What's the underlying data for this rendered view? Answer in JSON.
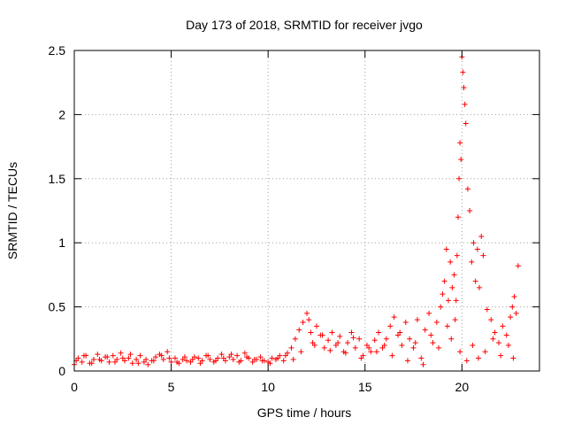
{
  "chart_data": {
    "type": "scatter",
    "title": "Day 173 of 2018, SRMTID for receiver jvgo",
    "xlabel": "GPS time / hours",
    "ylabel": "SRMTID / TECUs",
    "xlim": [
      0,
      24
    ],
    "ylim": [
      0,
      2.5
    ],
    "x_ticks": [
      0,
      5,
      10,
      15,
      20
    ],
    "x_tick_labels": [
      "0",
      "5",
      "10",
      "15",
      "20"
    ],
    "y_ticks": [
      0,
      0.5,
      1,
      1.5,
      2,
      2.5
    ],
    "y_tick_labels": [
      "0",
      "0.5",
      "1",
      "1.5",
      "2",
      "2.5"
    ],
    "grid": true,
    "marker": "plus",
    "color": "#ff0000",
    "series": [
      {
        "name": "SRMTID",
        "x": [
          0.0,
          0.2,
          0.4,
          0.6,
          0.8,
          1.0,
          1.2,
          1.4,
          1.6,
          1.8,
          2.0,
          2.2,
          2.4,
          2.6,
          2.8,
          3.0,
          3.2,
          3.4,
          3.6,
          3.8,
          4.0,
          4.2,
          4.4,
          4.6,
          4.8,
          5.0,
          5.2,
          5.4,
          5.6,
          5.8,
          6.0,
          6.2,
          6.4,
          6.6,
          6.8,
          7.0,
          7.2,
          7.4,
          7.6,
          7.8,
          8.0,
          8.2,
          8.4,
          8.6,
          8.8,
          9.0,
          9.2,
          9.4,
          9.6,
          9.8,
          10.0,
          10.2,
          10.4,
          10.6,
          10.8,
          11.0,
          11.2,
          11.4,
          11.6,
          11.8,
          12.0,
          12.1,
          12.2,
          12.3,
          12.5,
          12.7,
          12.9,
          13.1,
          13.3,
          13.5,
          13.7,
          13.9,
          14.1,
          14.3,
          14.5,
          14.7,
          14.9,
          15.1,
          15.3,
          15.5,
          15.7,
          15.9,
          16.1,
          16.3,
          16.5,
          16.7,
          16.9,
          17.1,
          17.3,
          17.5,
          17.7,
          17.9,
          18.1,
          18.3,
          18.5,
          18.7,
          18.9,
          19.0,
          19.1,
          19.2,
          19.3,
          19.4,
          19.5,
          19.6,
          19.7,
          19.75,
          19.8,
          19.85,
          19.9,
          19.95,
          20.0,
          20.05,
          20.1,
          20.15,
          20.2,
          20.3,
          20.4,
          20.5,
          20.6,
          20.7,
          20.8,
          20.9,
          21.0,
          21.1,
          21.3,
          21.5,
          21.7,
          21.9,
          22.1,
          22.3,
          22.5,
          22.6,
          22.7,
          22.8,
          22.9,
          0.1,
          0.5,
          0.9,
          1.3,
          1.7,
          2.1,
          2.5,
          2.9,
          3.3,
          3.7,
          4.1,
          4.5,
          4.9,
          5.3,
          5.7,
          6.1,
          6.5,
          6.9,
          7.3,
          7.7,
          8.1,
          8.5,
          8.9,
          9.3,
          9.7,
          10.1,
          10.5,
          10.9,
          11.3,
          11.7,
          12.4,
          12.8,
          13.2,
          13.6,
          14.0,
          14.4,
          14.8,
          15.2,
          15.6,
          16.0,
          16.4,
          16.8,
          17.2,
          17.6,
          18.0,
          18.4,
          18.8,
          19.25,
          19.45,
          19.65,
          19.9,
          20.25,
          20.55,
          20.85,
          21.2,
          21.6,
          22.0,
          22.4,
          22.65
        ],
        "y": [
          0.05,
          0.1,
          0.07,
          0.12,
          0.06,
          0.09,
          0.13,
          0.08,
          0.11,
          0.07,
          0.12,
          0.09,
          0.14,
          0.08,
          0.1,
          0.06,
          0.09,
          0.12,
          0.07,
          0.05,
          0.08,
          0.11,
          0.13,
          0.09,
          0.15,
          0.07,
          0.1,
          0.06,
          0.09,
          0.08,
          0.07,
          0.11,
          0.1,
          0.08,
          0.12,
          0.09,
          0.07,
          0.1,
          0.13,
          0.08,
          0.11,
          0.09,
          0.12,
          0.08,
          0.14,
          0.1,
          0.07,
          0.09,
          0.11,
          0.08,
          0.07,
          0.1,
          0.09,
          0.12,
          0.08,
          0.14,
          0.18,
          0.25,
          0.32,
          0.38,
          0.45,
          0.4,
          0.3,
          0.22,
          0.35,
          0.28,
          0.18,
          0.24,
          0.3,
          0.2,
          0.27,
          0.15,
          0.22,
          0.3,
          0.18,
          0.25,
          0.12,
          0.2,
          0.15,
          0.24,
          0.3,
          0.18,
          0.25,
          0.35,
          0.42,
          0.28,
          0.2,
          0.38,
          0.25,
          0.18,
          0.4,
          0.1,
          0.32,
          0.45,
          0.22,
          0.38,
          0.5,
          0.6,
          0.7,
          0.95,
          0.55,
          0.85,
          0.65,
          0.75,
          0.55,
          0.9,
          1.2,
          1.5,
          1.78,
          1.65,
          2.45,
          2.33,
          2.21,
          2.08,
          1.93,
          1.42,
          1.25,
          0.85,
          1.0,
          0.7,
          0.95,
          0.65,
          1.05,
          0.9,
          0.48,
          0.4,
          0.3,
          0.22,
          0.35,
          0.28,
          0.42,
          0.5,
          0.58,
          0.45,
          0.82,
          0.08,
          0.12,
          0.06,
          0.09,
          0.11,
          0.07,
          0.1,
          0.13,
          0.06,
          0.09,
          0.08,
          0.12,
          0.1,
          0.07,
          0.11,
          0.09,
          0.06,
          0.12,
          0.08,
          0.1,
          0.13,
          0.07,
          0.11,
          0.09,
          0.08,
          0.06,
          0.1,
          0.12,
          0.09,
          0.15,
          0.2,
          0.28,
          0.16,
          0.22,
          0.14,
          0.26,
          0.1,
          0.18,
          0.15,
          0.2,
          0.12,
          0.3,
          0.08,
          0.22,
          0.05,
          0.28,
          0.18,
          0.35,
          0.25,
          0.4,
          0.15,
          0.08,
          0.2,
          0.1,
          0.15,
          0.25,
          0.12,
          0.2,
          0.1
        ]
      }
    ]
  }
}
